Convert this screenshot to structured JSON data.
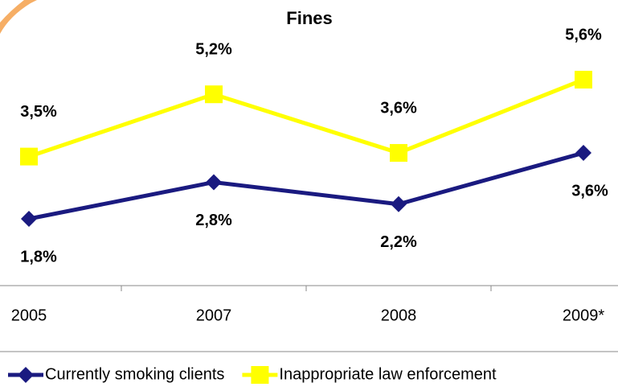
{
  "chart_data": {
    "type": "line",
    "title": "Fines",
    "categories": [
      "2005",
      "2007",
      "2008",
      "2009*"
    ],
    "series": [
      {
        "name": "Currently smoking clients",
        "color": "#1a1a80",
        "marker": "diamond",
        "values": [
          1.8,
          2.8,
          2.2,
          3.6
        ],
        "value_labels": [
          "1,8%",
          "2,8%",
          "2,2%",
          "3,6%"
        ]
      },
      {
        "name": "Inappropriate law enforcement",
        "color": "#ffff00",
        "marker": "square",
        "values": [
          3.5,
          5.2,
          3.6,
          5.6
        ],
        "value_labels": [
          "3,5%",
          "5,2%",
          "3,6%",
          "5,6%"
        ]
      }
    ],
    "legend": "bottom"
  }
}
